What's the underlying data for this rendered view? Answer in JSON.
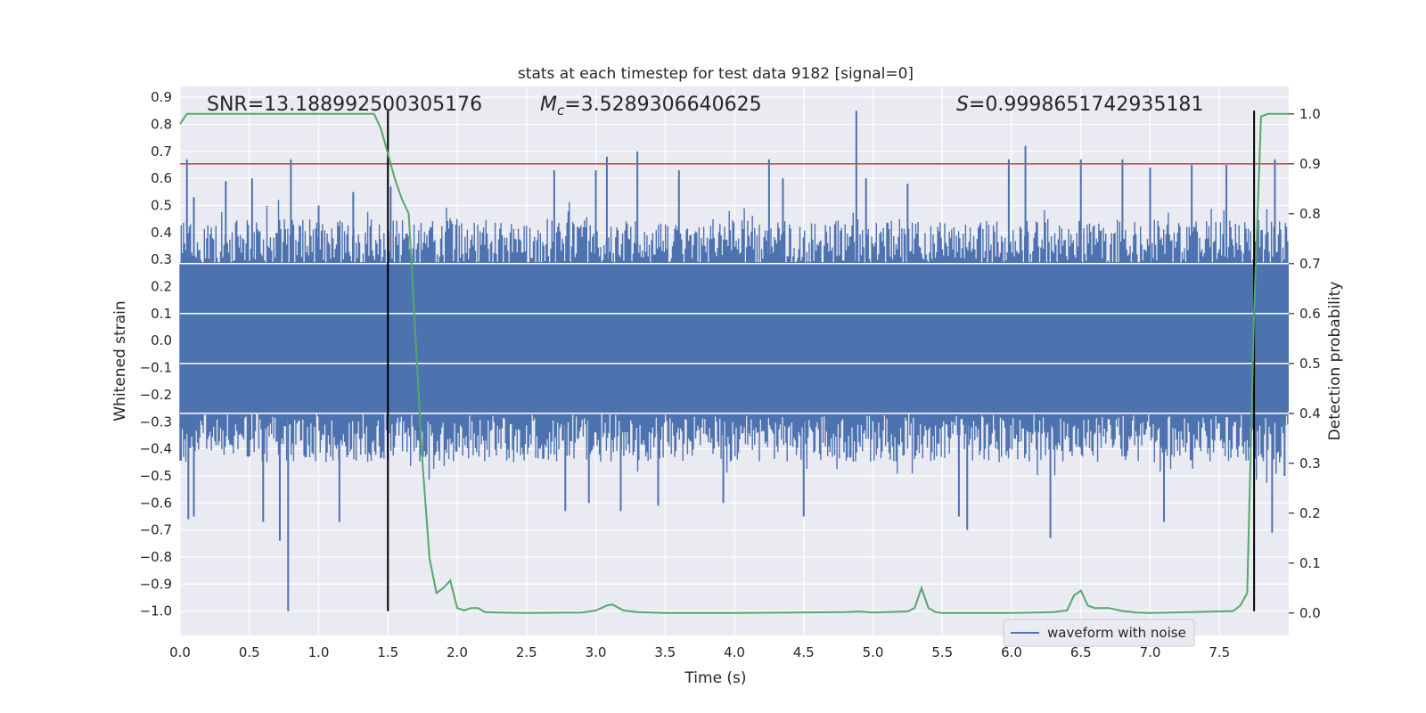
{
  "chart_data": {
    "type": "line",
    "title": "stats at each timestep for test data 9182 [signal=0]",
    "xlabel": "Time (s)",
    "ylabel": "Whitened strain",
    "ylabel_right": "Detection probability",
    "xlim": [
      0.0,
      8.0
    ],
    "ylim": [
      -1.09,
      0.94
    ],
    "ylim_right": [
      -0.045,
      1.055
    ],
    "x_ticks": [
      "0.0",
      "0.5",
      "1.0",
      "1.5",
      "2.0",
      "2.5",
      "3.0",
      "3.5",
      "4.0",
      "4.5",
      "5.0",
      "5.5",
      "6.0",
      "6.5",
      "7.0",
      "7.5"
    ],
    "y_ticks": [
      "0.9",
      "0.8",
      "0.7",
      "0.6",
      "0.5",
      "0.4",
      "0.3",
      "0.2",
      "0.1",
      "0.0",
      "−0.1",
      "−0.2",
      "−0.3",
      "−0.4",
      "−0.5",
      "−0.6",
      "−0.7",
      "−0.8",
      "−0.9",
      "−1.0"
    ],
    "y_ticks_right": [
      "1.0",
      "0.9",
      "0.8",
      "0.7",
      "0.6",
      "0.5",
      "0.4",
      "0.3",
      "0.2",
      "0.1",
      "0.0"
    ],
    "grid": true,
    "legend": {
      "placement": "lower-right",
      "entries": [
        "waveform with noise"
      ]
    },
    "annotations": {
      "snr": "SNR=13.188992500305176",
      "mc_symbol": "M",
      "mc_sub": "c",
      "mc_value": "=3.5289306640625",
      "s_symbol": "S",
      "s_value": "=0.9998651742935181"
    },
    "colors": {
      "waveform": "#4c72b0",
      "probability": "#55a868",
      "threshold": "#c44e52",
      "marker": "#000000"
    },
    "threshold_right": 0.9,
    "vertical_markers": [
      1.5,
      7.75
    ],
    "vertical_marker_range": [
      -1.0,
      0.85
    ],
    "series": [
      {
        "name": "waveform with noise",
        "axis": "left",
        "core_band": [
          -0.26,
          0.29
        ],
        "typical_upper": 0.45,
        "typical_lower": -0.45,
        "spikes": [
          [
            0.05,
            0.67
          ],
          [
            0.06,
            -0.66
          ],
          [
            0.1,
            0.53
          ],
          [
            0.1,
            -0.65
          ],
          [
            0.33,
            0.59
          ],
          [
            0.52,
            0.6
          ],
          [
            0.6,
            -0.67
          ],
          [
            0.72,
            -0.74
          ],
          [
            0.78,
            -1.0
          ],
          [
            0.8,
            0.67
          ],
          [
            1.0,
            0.5
          ],
          [
            1.15,
            -0.67
          ],
          [
            1.25,
            0.55
          ],
          [
            1.52,
            0.57
          ],
          [
            2.7,
            0.63
          ],
          [
            2.78,
            -0.63
          ],
          [
            2.95,
            -0.6
          ],
          [
            3.0,
            0.63
          ],
          [
            3.08,
            0.68
          ],
          [
            3.18,
            -0.63
          ],
          [
            3.3,
            0.7
          ],
          [
            3.45,
            -0.61
          ],
          [
            3.6,
            0.63
          ],
          [
            3.92,
            -0.6
          ],
          [
            4.25,
            0.67
          ],
          [
            4.35,
            0.6
          ],
          [
            4.5,
            -0.65
          ],
          [
            4.88,
            0.85
          ],
          [
            4.95,
            0.6
          ],
          [
            5.25,
            0.58
          ],
          [
            5.62,
            -0.65
          ],
          [
            5.68,
            -0.7
          ],
          [
            5.98,
            0.67
          ],
          [
            6.1,
            0.72
          ],
          [
            6.28,
            -0.73
          ],
          [
            6.5,
            0.67
          ],
          [
            6.8,
            0.67
          ],
          [
            7.0,
            0.64
          ],
          [
            7.1,
            -0.67
          ],
          [
            7.3,
            0.65
          ],
          [
            7.55,
            0.65
          ],
          [
            7.88,
            -0.71
          ],
          [
            7.9,
            0.67
          ],
          [
            7.97,
            -0.5
          ]
        ]
      },
      {
        "name": "",
        "axis": "right",
        "x": [
          0.0,
          0.05,
          0.1,
          0.2,
          1.0,
          1.4,
          1.45,
          1.5,
          1.55,
          1.6,
          1.65,
          1.7,
          1.75,
          1.8,
          1.85,
          1.9,
          1.95,
          2.0,
          2.05,
          2.1,
          2.15,
          2.2,
          2.3,
          2.5,
          2.9,
          3.0,
          3.08,
          3.12,
          3.2,
          3.3,
          3.5,
          4.0,
          4.8,
          4.9,
          5.0,
          5.25,
          5.3,
          5.35,
          5.4,
          5.45,
          5.5,
          6.0,
          6.3,
          6.4,
          6.45,
          6.5,
          6.55,
          6.6,
          6.7,
          6.8,
          6.9,
          7.0,
          7.3,
          7.6,
          7.65,
          7.7,
          7.75,
          7.8,
          7.85,
          7.9,
          8.0
        ],
        "values": [
          0.98,
          1.0,
          1.0,
          1.0,
          1.0,
          1.0,
          0.97,
          0.92,
          0.87,
          0.83,
          0.8,
          0.55,
          0.3,
          0.11,
          0.04,
          0.05,
          0.065,
          0.01,
          0.005,
          0.01,
          0.01,
          0.002,
          0.001,
          0.0,
          0.001,
          0.005,
          0.015,
          0.017,
          0.005,
          0.002,
          0.0,
          0.0,
          0.002,
          0.003,
          0.001,
          0.003,
          0.01,
          0.05,
          0.01,
          0.002,
          0.0,
          0.0,
          0.002,
          0.005,
          0.035,
          0.045,
          0.015,
          0.01,
          0.01,
          0.004,
          0.001,
          0.0,
          0.002,
          0.004,
          0.015,
          0.04,
          0.6,
          0.995,
          1.0,
          1.0,
          1.0
        ]
      }
    ]
  }
}
